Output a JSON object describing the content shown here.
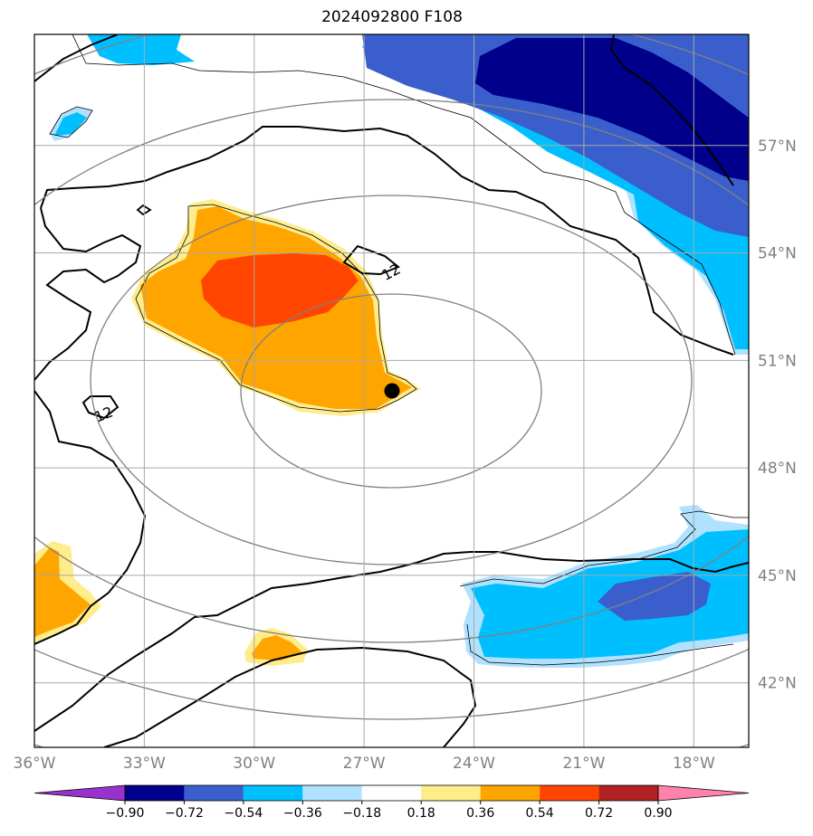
{
  "chart_data": {
    "type": "heatmap",
    "title": "2024092800 F108",
    "x_ticks": [
      "36°W",
      "33°W",
      "30°W",
      "27°W",
      "24°W",
      "21°W",
      "18°W"
    ],
    "y_ticks": [
      "57°N",
      "54°N",
      "51°N",
      "48°N",
      "45°N",
      "42°N"
    ],
    "xlim": [
      -36,
      -16.5
    ],
    "ylim": [
      40.2,
      60.1
    ],
    "grid": true,
    "colorbar": {
      "levels": [
        "−0.90",
        "−0.72",
        "−0.54",
        "−0.36",
        "−0.18",
        "0.18",
        "0.36",
        "0.54",
        "0.72",
        "0.90"
      ],
      "colors": [
        "#9932cc",
        "#00008b",
        "#3a5fcd",
        "#00bfff",
        "#b0e2ff",
        "#ffffff",
        "#ffec8b",
        "#ffa500",
        "#ff4500",
        "#b22222",
        "#ff82ab"
      ],
      "extend": "both"
    },
    "contour_labels": [
      "12",
      "12"
    ],
    "marker": {
      "lon": -26.0,
      "lat": 49.9
    }
  }
}
